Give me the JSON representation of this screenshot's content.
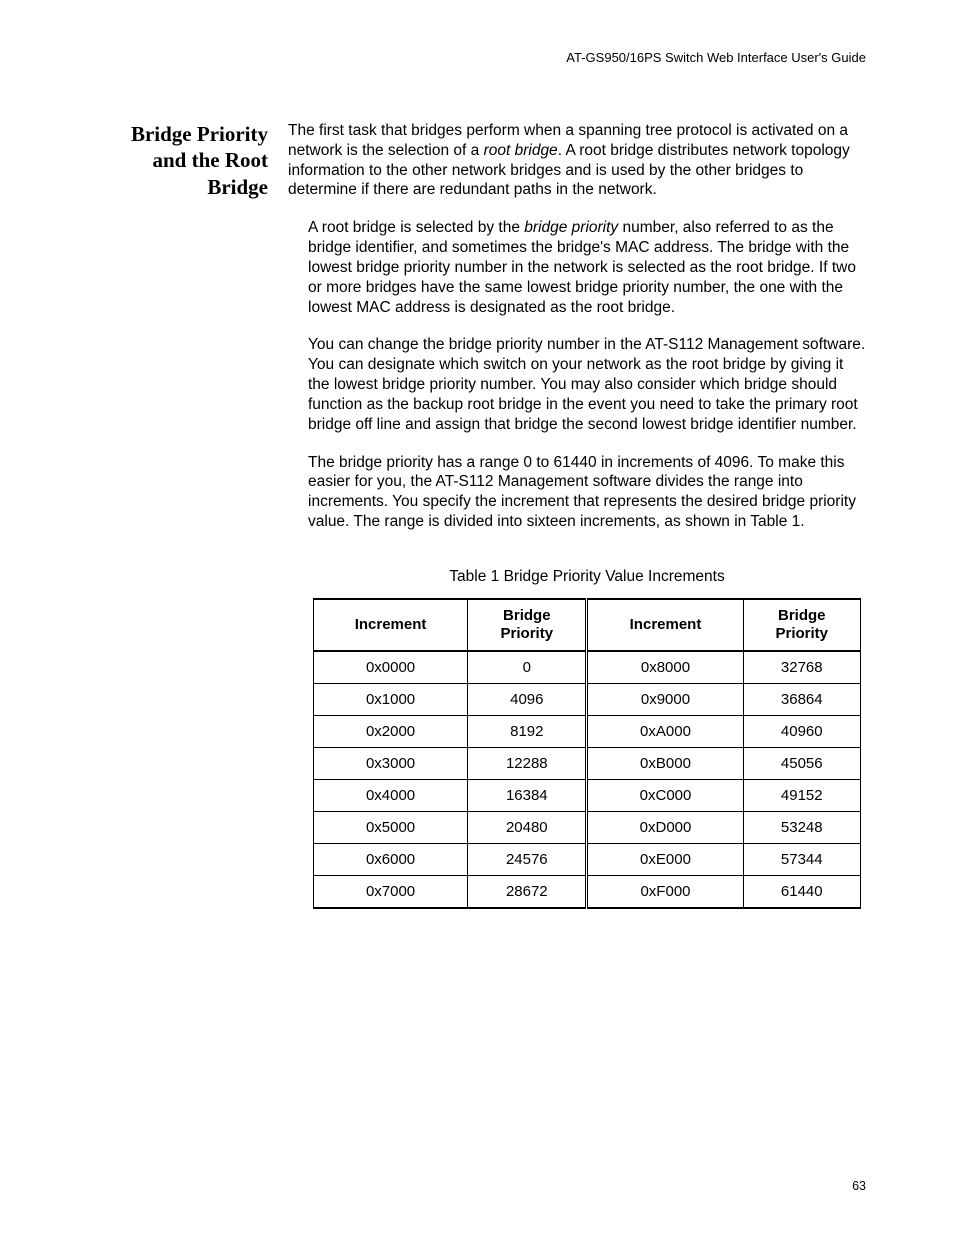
{
  "header": {
    "text": "AT-GS950/16PS Switch Web Interface User's Guide"
  },
  "sideHeading": {
    "line1": "Bridge Priority",
    "line2": "and the Root",
    "line3": "Bridge"
  },
  "paragraphs": {
    "p1_a": "The first task that bridges perform when a spanning tree protocol is activated on a network is the selection of a ",
    "p1_em": "root bridge",
    "p1_b": ". A root bridge distributes network topology information to the other network bridges and is used by the other bridges to determine if there are redundant paths in the network.",
    "p2_a": "A root bridge is selected by the ",
    "p2_em": "bridge priority",
    "p2_b": " number, also referred to as the bridge identifier, and sometimes the bridge's MAC address. The bridge with the lowest bridge priority number in the network is selected as the root bridge. If two or more bridges have the same lowest bridge priority number, the one with the lowest MAC address is designated as the root bridge.",
    "p3": "You can change the bridge priority number in the AT-S112 Management software. You can designate which switch on your network as the root bridge by giving it the lowest bridge priority number. You may also consider which bridge should function as the backup root bridge in the event you need to take the primary root bridge off line and assign that bridge the second lowest bridge identifier number.",
    "p4": "The bridge priority has a range 0 to 61440 in increments of 4096. To make this easier for you, the AT-S112 Management software divides the range into increments. You specify the increment that represents the desired bridge priority value. The range is divided into sixteen increments, as shown in Table 1."
  },
  "table": {
    "caption": "Table 1 Bridge Priority Value Increments",
    "headers": {
      "c1": "Increment",
      "c2_l1": "Bridge",
      "c2_l2": "Priority",
      "c3": "Increment",
      "c4_l1": "Bridge",
      "c4_l2": "Priority"
    },
    "rows": [
      {
        "c1": "0x0000",
        "c2": "0",
        "c3": "0x8000",
        "c4": "32768"
      },
      {
        "c1": "0x1000",
        "c2": "4096",
        "c3": "0x9000",
        "c4": "36864"
      },
      {
        "c1": "0x2000",
        "c2": "8192",
        "c3": "0xA000",
        "c4": "40960"
      },
      {
        "c1": "0x3000",
        "c2": "12288",
        "c3": "0xB000",
        "c4": "45056"
      },
      {
        "c1": "0x4000",
        "c2": "16384",
        "c3": "0xC000",
        "c4": "49152"
      },
      {
        "c1": "0x5000",
        "c2": "20480",
        "c3": "0xD000",
        "c4": "53248"
      },
      {
        "c1": "0x6000",
        "c2": "24576",
        "c3": "0xE000",
        "c4": "57344"
      },
      {
        "c1": "0x7000",
        "c2": "28672",
        "c3": "0xF000",
        "c4": "61440"
      }
    ]
  },
  "pageNumber": "63"
}
